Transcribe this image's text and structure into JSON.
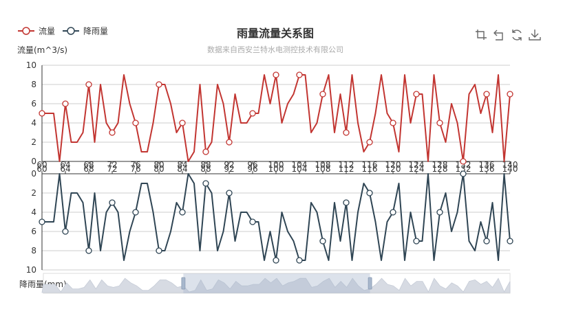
{
  "title": "雨量流量关系图",
  "subtitle": "数据来自西安兰特水电测控技术有限公司",
  "legend": [
    {
      "label": "流量",
      "color": "#c23531"
    },
    {
      "label": "降雨量",
      "color": "#2f4554"
    }
  ],
  "toolbox": [
    "crop-icon",
    "undo-icon",
    "refresh-icon",
    "download-icon"
  ],
  "chart_data": [
    {
      "type": "line",
      "name": "流量",
      "ylabel": "流量(m^3/s)",
      "ylim": [
        0,
        10
      ],
      "yticks": [
        0,
        2,
        4,
        6,
        8,
        10
      ],
      "color": "#c23531",
      "x": [
        60,
        61,
        62,
        63,
        64,
        65,
        66,
        67,
        68,
        69,
        70,
        71,
        72,
        73,
        74,
        75,
        76,
        77,
        78,
        79,
        80,
        81,
        82,
        83,
        84,
        85,
        86,
        87,
        88,
        89,
        90,
        91,
        92,
        93,
        94,
        95,
        96,
        97,
        98,
        99,
        100,
        101,
        102,
        103,
        104,
        105,
        106,
        107,
        108,
        109,
        110,
        111,
        112,
        113,
        114,
        115,
        116,
        117,
        118,
        119,
        120,
        121,
        122,
        123,
        124,
        125,
        126,
        127,
        128,
        129,
        130,
        131,
        132,
        133,
        134,
        135,
        136,
        137,
        138,
        139,
        140
      ],
      "values": [
        5,
        5,
        5,
        0,
        6,
        2,
        2,
        3,
        8,
        2,
        8,
        4,
        3,
        4,
        9,
        6,
        4,
        1,
        1,
        4,
        8,
        8,
        6,
        3,
        4,
        0,
        1,
        8,
        1,
        2,
        8,
        6,
        2,
        7,
        4,
        4,
        5,
        5,
        9,
        6,
        9,
        4,
        6,
        7,
        9,
        9,
        3,
        4,
        7,
        9,
        3,
        7,
        3,
        9,
        4,
        1,
        2,
        5,
        9,
        5,
        4,
        1,
        9,
        4,
        7,
        7,
        0,
        9,
        4,
        2,
        6,
        4,
        0,
        7,
        8,
        5,
        7,
        3,
        9,
        0,
        7
      ],
      "markers_at": [
        60,
        64,
        68,
        72,
        76,
        80,
        84,
        88,
        92,
        96,
        100,
        104,
        108,
        112,
        116,
        120,
        124,
        128,
        132,
        136,
        140
      ]
    },
    {
      "type": "line",
      "name": "降雨量",
      "ylabel": "降雨量(mm)",
      "ylim": [
        0,
        10
      ],
      "yticks": [
        0,
        2,
        4,
        6,
        8,
        10
      ],
      "inverse": true,
      "color": "#2f4554",
      "x": [
        60,
        61,
        62,
        63,
        64,
        65,
        66,
        67,
        68,
        69,
        70,
        71,
        72,
        73,
        74,
        75,
        76,
        77,
        78,
        79,
        80,
        81,
        82,
        83,
        84,
        85,
        86,
        87,
        88,
        89,
        90,
        91,
        92,
        93,
        94,
        95,
        96,
        97,
        98,
        99,
        100,
        101,
        102,
        103,
        104,
        105,
        106,
        107,
        108,
        109,
        110,
        111,
        112,
        113,
        114,
        115,
        116,
        117,
        118,
        119,
        120,
        121,
        122,
        123,
        124,
        125,
        126,
        127,
        128,
        129,
        130,
        131,
        132,
        133,
        134,
        135,
        136,
        137,
        138,
        139,
        140
      ],
      "values": [
        5,
        5,
        5,
        0,
        6,
        2,
        2,
        3,
        8,
        2,
        8,
        4,
        3,
        4,
        9,
        6,
        4,
        1,
        1,
        4,
        8,
        8,
        6,
        3,
        4,
        0,
        1,
        8,
        1,
        2,
        8,
        6,
        2,
        7,
        4,
        4,
        5,
        5,
        9,
        6,
        9,
        4,
        6,
        7,
        9,
        9,
        3,
        4,
        7,
        9,
        3,
        7,
        3,
        9,
        4,
        1,
        2,
        5,
        9,
        5,
        4,
        1,
        9,
        4,
        7,
        7,
        0,
        9,
        4,
        2,
        6,
        4,
        0,
        7,
        8,
        5,
        7,
        3,
        9,
        0,
        7
      ],
      "markers_at": [
        60,
        64,
        68,
        72,
        76,
        80,
        84,
        88,
        92,
        96,
        100,
        104,
        108,
        112,
        116,
        120,
        124,
        128,
        132,
        136,
        140
      ]
    }
  ],
  "xticks": [
    60,
    64,
    68,
    72,
    76,
    80,
    84,
    88,
    92,
    96,
    100,
    104,
    108,
    112,
    116,
    120,
    124,
    128,
    132,
    136,
    140
  ],
  "datazoom": {
    "start_fraction": 0.3,
    "end_fraction": 0.7
  }
}
